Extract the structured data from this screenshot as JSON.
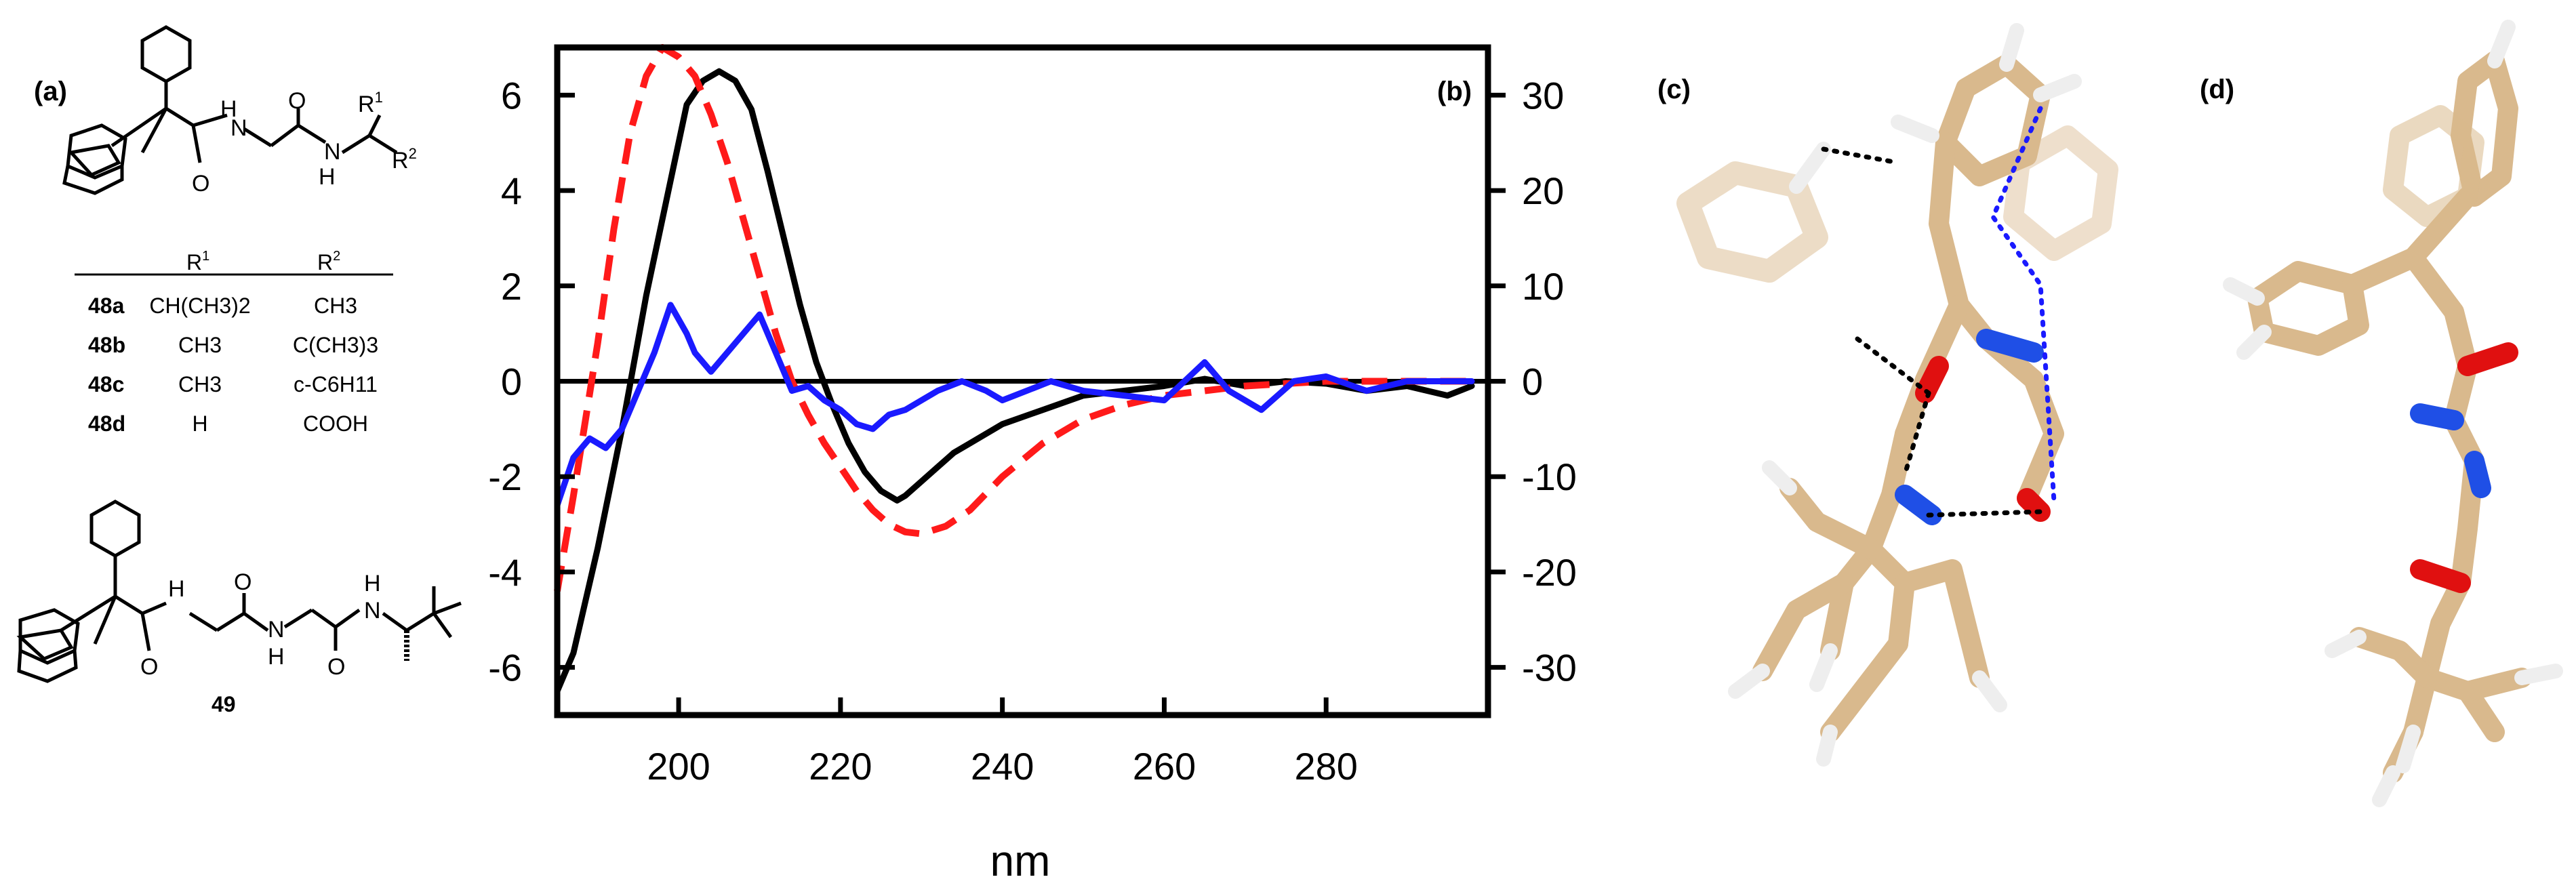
{
  "panels": {
    "a": {
      "label": "(a)"
    },
    "b": {
      "label": "(b)"
    },
    "c": {
      "label": "(c)"
    },
    "d": {
      "label": "(d)"
    }
  },
  "chem": {
    "amide_labels": [
      "H",
      "N",
      "O",
      "H",
      "O",
      "N",
      "H",
      "O",
      "N",
      "H",
      "O",
      "N",
      "H",
      "O"
    ],
    "r1_sup": "R",
    "r1_sup_index": "1",
    "r2_sub": "R",
    "r2_sub_index": "2",
    "table": {
      "headers": [
        {
          "text": "R",
          "sup": "1"
        },
        {
          "text": "R",
          "sup": "2"
        }
      ],
      "rows": [
        {
          "id": "48a",
          "r1": "CH(CH3)2",
          "r2": "CH3"
        },
        {
          "id": "48b",
          "r1": "CH3",
          "r2": "C(CH3)3"
        },
        {
          "id": "48c",
          "r1": "CH3",
          "r2": "c-C6H11"
        },
        {
          "id": "48d",
          "r1": "H",
          "r2": "COOH"
        }
      ]
    },
    "compound2_label": "49"
  },
  "colors": {
    "black": "#000000",
    "red": "#ff1a1a",
    "blue": "#1a1aff",
    "carbon": "#d9b98d",
    "nitrogen": "#1f4fe6",
    "oxygen": "#e01010",
    "hydrogen": "#f0f0f0"
  },
  "chart_data": {
    "type": "line",
    "xlabel": "nm",
    "xlim": [
      185,
      300
    ],
    "x_ticks": [
      200,
      220,
      240,
      260,
      280
    ],
    "y_left": {
      "ylim": [
        -7,
        7
      ],
      "ticks": [
        -6,
        -4,
        -2,
        0,
        2,
        4,
        6
      ]
    },
    "y_right": {
      "ylim": [
        -35,
        35
      ],
      "ticks": [
        -30,
        -20,
        -10,
        0,
        10,
        20,
        30
      ]
    },
    "series": [
      {
        "name": "black solid",
        "color": "#000000",
        "style": "solid",
        "axis": "left",
        "x": [
          185,
          187,
          190,
          193,
          196,
          199,
          201,
          203,
          205,
          207,
          209,
          211,
          213,
          215,
          217,
          219,
          221,
          223,
          225,
          227,
          228,
          230,
          232,
          234,
          236,
          238,
          240,
          245,
          250,
          255,
          260,
          265,
          270,
          275,
          280,
          285,
          290,
          295,
          298
        ],
        "y": [
          -6.5,
          -5.7,
          -3.5,
          -1.0,
          1.8,
          4.2,
          5.8,
          6.3,
          6.5,
          6.3,
          5.7,
          4.4,
          3.0,
          1.6,
          0.4,
          -0.5,
          -1.3,
          -1.9,
          -2.3,
          -2.5,
          -2.4,
          -2.1,
          -1.8,
          -1.5,
          -1.3,
          -1.1,
          -0.9,
          -0.6,
          -0.3,
          -0.2,
          -0.1,
          0.05,
          -0.1,
          0.0,
          -0.05,
          -0.2,
          -0.1,
          -0.3,
          -0.1
        ]
      },
      {
        "name": "red dashed",
        "color": "#ff1a1a",
        "style": "dashed",
        "axis": "right",
        "x": [
          185,
          187,
          190,
          192,
          194,
          196,
          198,
          200,
          202,
          204,
          206,
          208,
          210,
          212,
          214,
          216,
          218,
          220,
          222,
          224,
          226,
          228,
          230,
          233,
          236,
          240,
          245,
          250,
          255,
          260,
          270,
          280,
          290,
          298
        ],
        "y": [
          -22,
          -12,
          4,
          16,
          26,
          32,
          35,
          34,
          32,
          28,
          23,
          17,
          11,
          5,
          0,
          -3.5,
          -6.5,
          -9,
          -11.5,
          -13.5,
          -15,
          -15.8,
          -16,
          -15.2,
          -13.5,
          -10,
          -6.5,
          -4,
          -2.5,
          -1.5,
          -0.5,
          0,
          0,
          0
        ]
      },
      {
        "name": "blue solid",
        "color": "#1a1aff",
        "style": "solid",
        "axis": "right",
        "x": [
          185,
          187,
          189,
          191,
          193,
          195,
          197,
          199,
          201,
          202,
          204,
          206,
          208,
          210,
          212,
          214,
          216,
          218,
          220,
          222,
          224,
          226,
          228,
          230,
          232,
          235,
          238,
          240,
          243,
          246,
          250,
          255,
          260,
          265,
          268,
          272,
          276,
          280,
          285,
          290,
          295,
          298
        ],
        "y": [
          -13,
          -8,
          -6,
          -7,
          -5,
          -1,
          3,
          8,
          5,
          3,
          1,
          3,
          5,
          7,
          3,
          -1,
          -0.5,
          -2,
          -3,
          -4.5,
          -5,
          -3.5,
          -3,
          -2,
          -1,
          0,
          -1,
          -2,
          -1,
          0,
          -1,
          -1.5,
          -2,
          2,
          -1,
          -3,
          0,
          0.5,
          -1,
          0,
          0,
          0
        ]
      }
    ]
  }
}
